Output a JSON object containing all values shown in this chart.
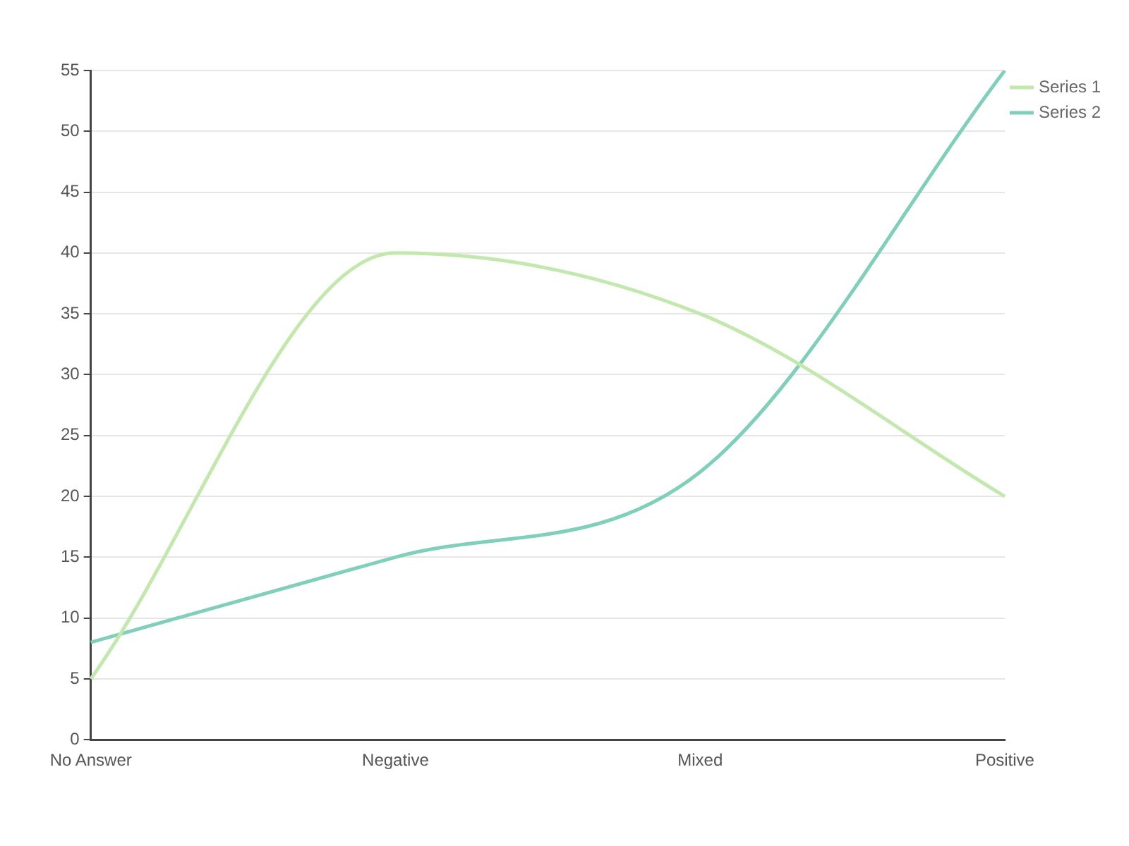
{
  "chart_data": {
    "type": "line",
    "categories": [
      "No Answer",
      "Negative",
      "Mixed",
      "Positive"
    ],
    "series": [
      {
        "name": "Series 1",
        "color": "#c3e8ae",
        "values": [
          5,
          40,
          35,
          20
        ]
      },
      {
        "name": "Series 2",
        "color": "#7fcfba",
        "values": [
          8,
          15,
          22,
          55
        ]
      }
    ],
    "ylim": [
      0,
      55
    ],
    "yticks": [
      0,
      5,
      10,
      15,
      20,
      25,
      30,
      35,
      40,
      45,
      50,
      55
    ],
    "grid": "y",
    "legend": "top right",
    "marker": "none",
    "line_style": "solid"
  }
}
